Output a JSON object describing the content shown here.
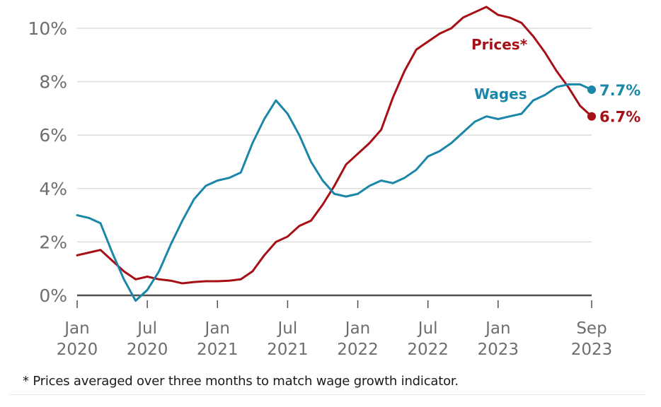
{
  "chart_data": {
    "type": "line",
    "title": "",
    "xlabel": "",
    "ylabel": "",
    "ylim": [
      0,
      10
    ],
    "yticks": [
      0,
      2,
      4,
      6,
      8,
      10
    ],
    "ytick_labels": [
      "0%",
      "2%",
      "4%",
      "6%",
      "8%",
      "10%"
    ],
    "grid": true,
    "x_start": "Jan 2020",
    "x_end": "Sep 2023",
    "x_unit": "month",
    "xticks": [
      {
        "month_index": 0,
        "line1": "Jan",
        "line2": "2020"
      },
      {
        "month_index": 6,
        "line1": "Jul",
        "line2": "2020"
      },
      {
        "month_index": 12,
        "line1": "Jan",
        "line2": "2021"
      },
      {
        "month_index": 18,
        "line1": "Jul",
        "line2": "2021"
      },
      {
        "month_index": 24,
        "line1": "Jan",
        "line2": "2022"
      },
      {
        "month_index": 30,
        "line1": "Jul",
        "line2": "2022"
      },
      {
        "month_index": 36,
        "line1": "Jan",
        "line2": "2023"
      },
      {
        "month_index": 44,
        "line1": "Sep",
        "line2": "2023"
      }
    ],
    "series": [
      {
        "name": "Prices*",
        "color": "#a50f15",
        "end_label": "6.7%",
        "values": [
          1.5,
          1.6,
          1.7,
          1.3,
          0.9,
          0.6,
          0.7,
          0.6,
          0.55,
          0.45,
          0.5,
          0.53,
          0.53,
          0.55,
          0.6,
          0.9,
          1.5,
          2.0,
          2.2,
          2.6,
          2.8,
          3.4,
          4.1,
          4.9,
          5.3,
          5.7,
          6.2,
          7.4,
          8.4,
          9.2,
          9.5,
          9.8,
          10.0,
          10.4,
          10.6,
          10.8,
          10.5,
          10.4,
          10.2,
          9.7,
          9.1,
          8.4,
          7.8,
          7.1,
          6.7
        ]
      },
      {
        "name": "Wages",
        "color": "#1a86a8",
        "end_label": "7.7%",
        "values": [
          3.0,
          2.9,
          2.7,
          1.6,
          0.6,
          -0.2,
          0.2,
          0.9,
          1.9,
          2.8,
          3.6,
          4.1,
          4.3,
          4.4,
          4.6,
          5.7,
          6.6,
          7.3,
          6.8,
          6.0,
          5.0,
          4.3,
          3.8,
          3.7,
          3.8,
          4.1,
          4.3,
          4.2,
          4.4,
          4.7,
          5.2,
          5.4,
          5.7,
          6.1,
          6.5,
          6.7,
          6.6,
          6.7,
          6.8,
          7.3,
          7.5,
          7.8,
          7.9,
          7.9,
          7.7
        ]
      }
    ],
    "legend": "inline labels near lines",
    "footnote": "* Prices averaged over three months to match wage growth indicator."
  }
}
